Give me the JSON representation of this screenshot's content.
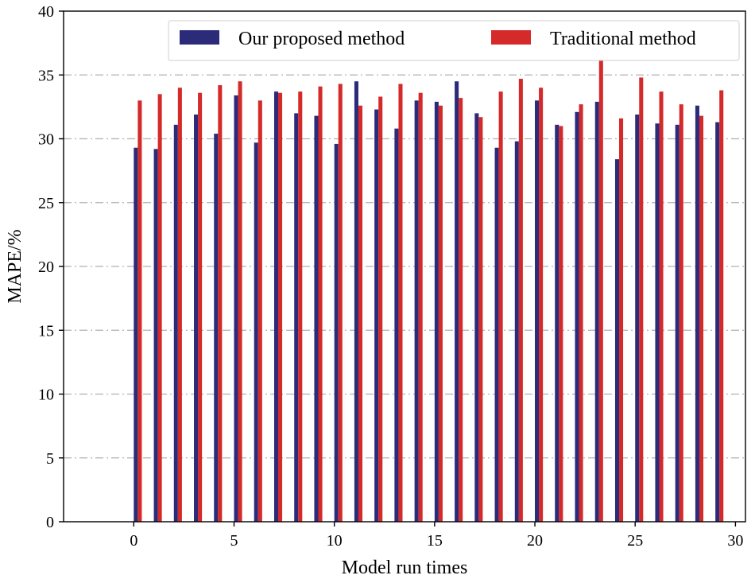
{
  "chart_data": {
    "type": "bar",
    "title": "",
    "xlabel": "Model run times",
    "ylabel": "MAPE/%",
    "xlim": [
      -3.5,
      30.5
    ],
    "ylim": [
      0,
      40
    ],
    "xticks": [
      0,
      5,
      10,
      15,
      20,
      25,
      30
    ],
    "yticks": [
      0,
      5,
      10,
      15,
      20,
      25,
      30,
      35,
      40
    ],
    "grid": "horizontal dash-dot",
    "legend_position": "top-right",
    "x": [
      0,
      1,
      2,
      3,
      4,
      5,
      6,
      7,
      8,
      9,
      10,
      11,
      12,
      13,
      14,
      15,
      16,
      17,
      18,
      19,
      20,
      21,
      22,
      23,
      24,
      25,
      26,
      27,
      28,
      29
    ],
    "series": [
      {
        "name": "Our proposed method",
        "color": "#2b2b7a",
        "values": [
          29.3,
          29.2,
          31.1,
          31.9,
          30.4,
          33.4,
          29.7,
          33.7,
          32.0,
          31.8,
          29.6,
          34.5,
          32.3,
          30.8,
          33.0,
          32.9,
          34.5,
          32.0,
          29.3,
          29.8,
          33.0,
          31.1,
          32.1,
          32.9,
          28.4,
          31.9,
          31.2,
          31.1,
          32.6,
          31.3
        ]
      },
      {
        "name": "Traditional method",
        "color": "#d42a2a",
        "values": [
          33.0,
          33.5,
          34.0,
          33.6,
          34.2,
          34.5,
          33.0,
          33.6,
          33.7,
          34.1,
          34.3,
          32.6,
          33.3,
          34.3,
          33.6,
          32.6,
          33.2,
          31.7,
          33.7,
          34.7,
          34.0,
          31.0,
          32.7,
          36.3,
          31.6,
          34.8,
          33.7,
          32.7,
          31.8,
          33.8
        ]
      }
    ]
  }
}
